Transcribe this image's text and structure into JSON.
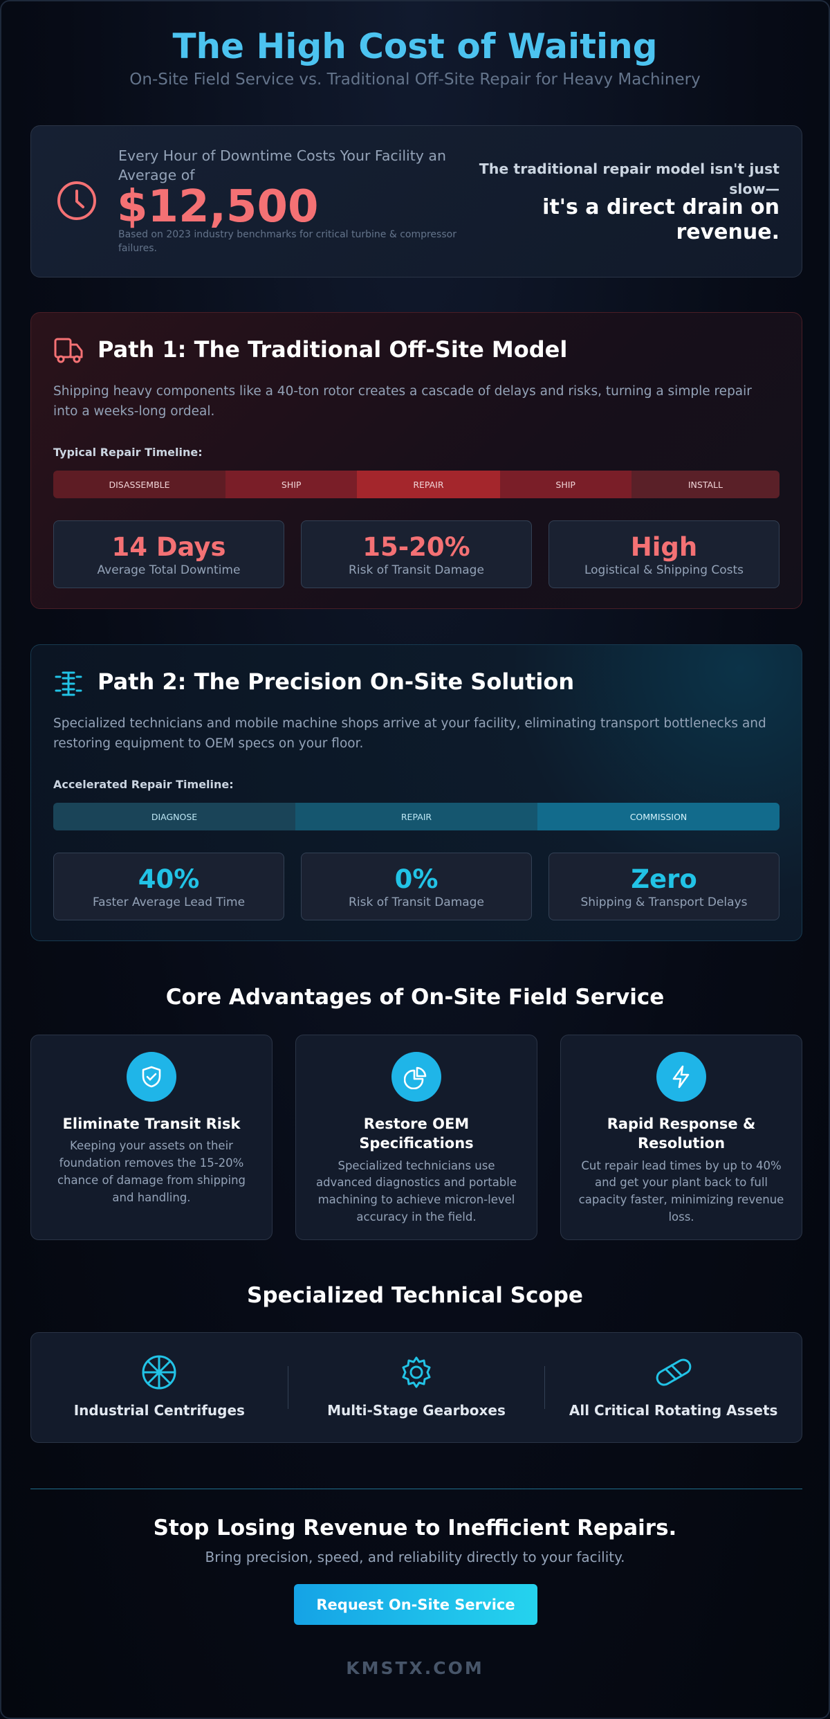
{
  "header": {
    "title": "The High Cost of Waiting",
    "subtitle": "On-Site Field Service vs. Traditional Off-Site Repair for Heavy Machinery"
  },
  "cost_banner": {
    "label": "Every Hour of Downtime Costs Your Facility an Average of",
    "amount": "$12,500",
    "note": "Based on 2023 industry benchmarks for critical turbine & compressor failures.",
    "quote_lead": "The traditional repair model isn't just slow—",
    "quote_emphasis": "it's a direct drain on revenue."
  },
  "path1": {
    "title": "Path 1: The Traditional Off-Site Model",
    "description": "Shipping heavy components like a 40-ton rotor creates a cascade of delays and risks, turning a simple repair into a weeks-long ordeal.",
    "timeline_label": "Typical Repair Timeline:",
    "timeline": [
      "DISASSEMBLE",
      "SHIP",
      "REPAIR",
      "SHIP",
      "INSTALL"
    ],
    "stats": [
      {
        "value": "14 Days",
        "label": "Average Total Downtime"
      },
      {
        "value": "15-20%",
        "label": "Risk of Transit Damage"
      },
      {
        "value": "High",
        "label": "Logistical & Shipping Costs"
      }
    ]
  },
  "path2": {
    "title": "Path 2: The Precision On-Site Solution",
    "description": "Specialized technicians and mobile machine shops arrive at your facility, eliminating transport bottlenecks and restoring equipment to OEM specs on your floor.",
    "timeline_label": "Accelerated Repair Timeline:",
    "timeline": [
      "DIAGNOSE",
      "REPAIR",
      "COMMISSION"
    ],
    "stats": [
      {
        "value": "40%",
        "label": "Faster Average Lead Time"
      },
      {
        "value": "0%",
        "label": "Risk of Transit Damage"
      },
      {
        "value": "Zero",
        "label": "Shipping & Transport Delays"
      }
    ]
  },
  "advantages": {
    "title": "Core Advantages of On-Site Field Service",
    "items": [
      {
        "title": "Eliminate Transit Risk",
        "text": "Keeping your assets on their foundation removes the 15-20% chance of damage from shipping and handling."
      },
      {
        "title": "Restore OEM Specifications",
        "text": "Specialized technicians use advanced diagnostics and portable machining to achieve micron-level accuracy in the field."
      },
      {
        "title": "Rapid Response & Resolution",
        "text": "Cut repair lead times by up to 40% and get your plant back to full capacity faster, minimizing revenue loss."
      }
    ]
  },
  "scope": {
    "title": "Specialized Technical Scope",
    "items": [
      "Industrial Centrifuges",
      "Multi-Stage Gearboxes",
      "All Critical Rotating Assets"
    ]
  },
  "cta": {
    "title": "Stop Losing Revenue to Inefficient Repairs.",
    "subtitle": "Bring precision, speed, and reliability directly to your facility.",
    "button": "Request On-Site Service"
  },
  "footer": {
    "brand": "KMSTX.COM"
  }
}
